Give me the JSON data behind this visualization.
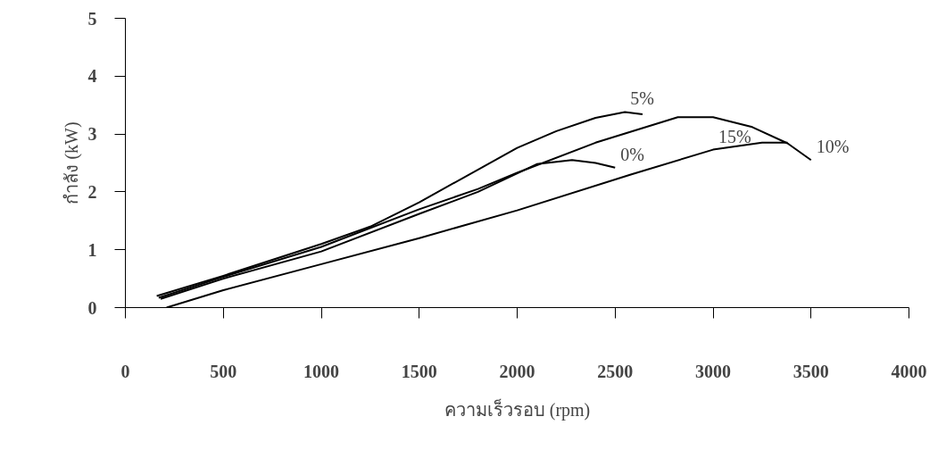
{
  "chart_data": {
    "type": "line",
    "xlabel": "ความเร็วรอบ (rpm)",
    "ylabel": "กำลัง (kW)",
    "xlim": [
      0,
      4000
    ],
    "xticks": [
      0,
      500,
      1000,
      1500,
      2000,
      2500,
      3000,
      3500,
      4000
    ],
    "ylim": [
      0,
      5
    ],
    "yticks": [
      0,
      1,
      2,
      3,
      4,
      5
    ],
    "grid": false,
    "marker": "none",
    "line_style": "solid",
    "series": [
      {
        "color": "#000000",
        "x": [
          160,
          500,
          1000,
          1250,
          1500,
          2000,
          2200,
          2400,
          2550,
          2640
        ],
        "values": [
          0.2,
          0.55,
          1.1,
          1.4,
          1.82,
          2.76,
          3.05,
          3.28,
          3.38,
          3.34
        ]
      },
      {
        "color": "#000000",
        "x": [
          170,
          500,
          1000,
          1500,
          1800,
          2000,
          2400,
          2820,
          3000,
          3200,
          3380,
          3500
        ],
        "values": [
          0.17,
          0.53,
          1.05,
          1.7,
          2.05,
          2.33,
          2.85,
          3.29,
          3.29,
          3.12,
          2.84,
          2.55
        ]
      },
      {
        "color": "#000000",
        "x": [
          180,
          500,
          1000,
          1500,
          1800,
          2100,
          2280,
          2400,
          2500
        ],
        "values": [
          0.15,
          0.5,
          0.97,
          1.62,
          2.0,
          2.48,
          2.55,
          2.5,
          2.42
        ]
      },
      {
        "color": "#000000",
        "x": [
          210,
          500,
          1000,
          1500,
          2000,
          2580,
          3000,
          3250,
          3380
        ],
        "values": [
          0,
          0.3,
          0.75,
          1.2,
          1.68,
          2.3,
          2.73,
          2.85,
          2.85
        ]
      }
    ],
    "annotations": [
      {
        "text": "5%",
        "x": 2550,
        "y": 3.38
      },
      {
        "text": "10%",
        "x": 3500,
        "y": 2.55
      },
      {
        "text": "0%",
        "x": 2500,
        "y": 2.42
      },
      {
        "text": "15%",
        "x": 3000,
        "y": 2.73
      }
    ]
  }
}
